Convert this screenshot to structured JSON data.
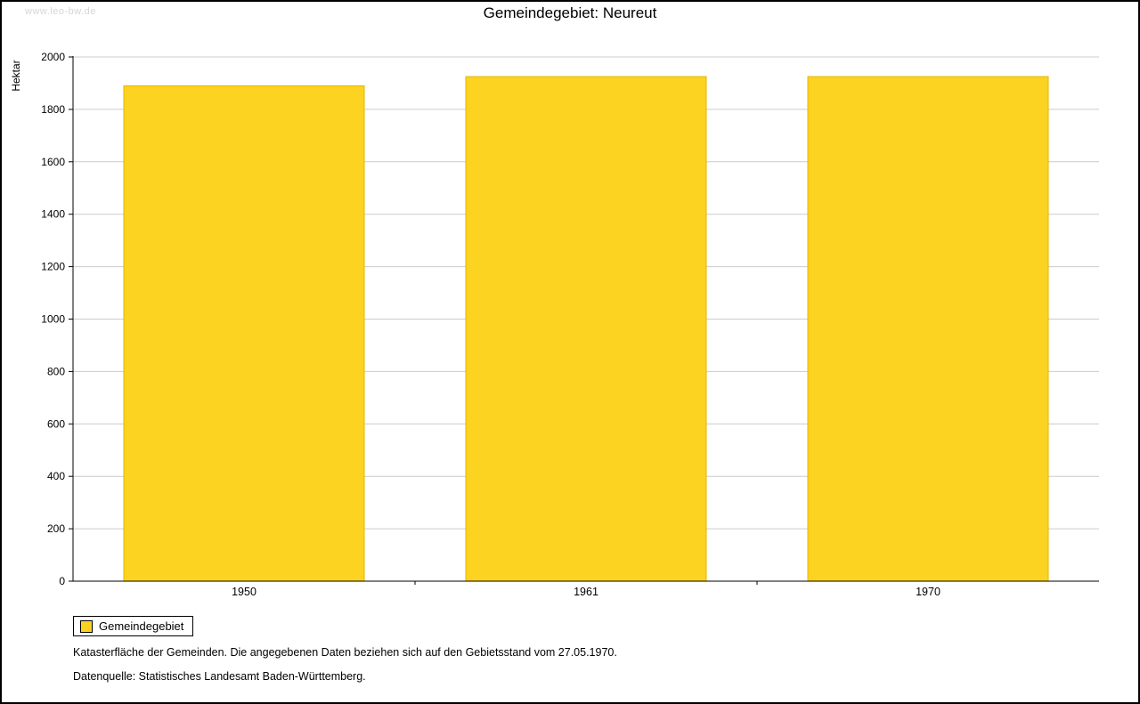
{
  "watermark": "www.leo-bw.de",
  "title": "Gemeindegebiet: Neureut",
  "y_axis_label": "Hektar",
  "legend": {
    "label": "Gemeindegebiet"
  },
  "footnotes": {
    "line1": "Katasterfläche der Gemeinden. Die angegebenen Daten beziehen sich auf den Gebietsstand vom 27.05.1970.",
    "line2": "Datenquelle: Statistisches Landesamt Baden-Württemberg."
  },
  "chart_data": {
    "type": "bar",
    "title": "Gemeindegebiet: Neureut",
    "categories": [
      "1950",
      "1961",
      "1970"
    ],
    "series": [
      {
        "name": "Gemeindegebiet",
        "values": [
          1890,
          1925,
          1925
        ]
      }
    ],
    "xlabel": "",
    "ylabel": "Hektar",
    "ylim": [
      0,
      2000
    ],
    "ytick_step": 200,
    "grid": true,
    "legend_position": "bottom-left",
    "bar_color": "#fdd321",
    "bar_border_color": "#e5b400",
    "grid_color": "#cccccc",
    "axis_color": "#000000"
  }
}
